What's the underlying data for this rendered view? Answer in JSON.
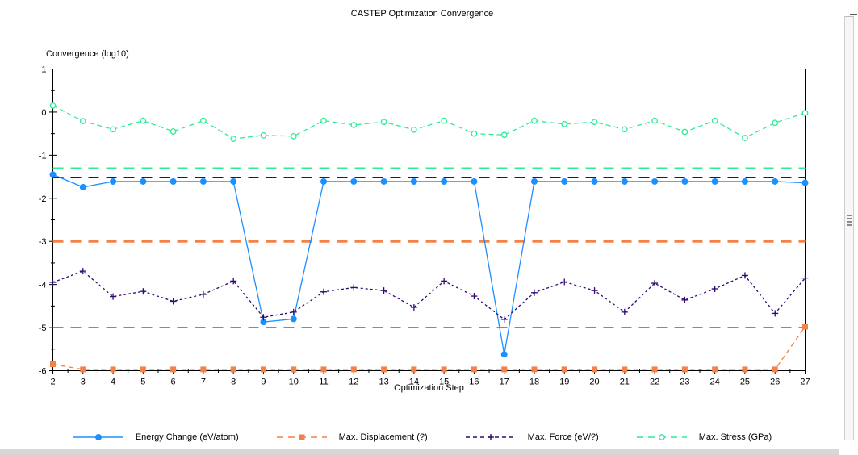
{
  "window": {
    "title": "CASTEP Optimization Convergence"
  },
  "chart_data": {
    "type": "line",
    "title": "CASTEP Optimization Convergence",
    "ylabel": "Convergence (log10)",
    "xlabel": "Optimization Step",
    "xlim": [
      2,
      27
    ],
    "ylim": [
      -6,
      1
    ],
    "y_major_ticks": [
      1,
      0,
      -1,
      -2,
      -3,
      -4,
      -5,
      -6
    ],
    "x_major_tick_step": 1,
    "minor_tick_step": 0.5,
    "grid": false,
    "legend_position": "bottom",
    "x": [
      2,
      3,
      4,
      5,
      6,
      7,
      8,
      9,
      10,
      11,
      12,
      13,
      14,
      15,
      16,
      17,
      18,
      19,
      20,
      21,
      22,
      23,
      24,
      25,
      26,
      27
    ],
    "series": [
      {
        "name": "Energy Change (eV/atom)",
        "color": "#1e8fff",
        "line_style": "solid",
        "marker": "circle-filled",
        "values": [
          -1.45,
          -1.74,
          -1.61,
          -1.61,
          -1.61,
          -1.61,
          -1.61,
          -4.87,
          -4.8,
          -1.61,
          -1.61,
          -1.61,
          -1.61,
          -1.61,
          -1.61,
          -5.62,
          -1.61,
          -1.61,
          -1.61,
          -1.61,
          -1.61,
          -1.61,
          -1.61,
          -1.61,
          -1.61,
          -1.64
        ]
      },
      {
        "name": "Max. Displacement (?)",
        "color": "#f48247",
        "line_style": "dashed",
        "marker": "square",
        "values": [
          -5.85,
          -5.97,
          -5.97,
          -5.97,
          -5.97,
          -5.97,
          -5.97,
          -5.97,
          -5.97,
          -5.97,
          -5.97,
          -5.97,
          -5.97,
          -5.97,
          -5.97,
          -5.97,
          -5.97,
          -5.97,
          -5.97,
          -5.97,
          -5.97,
          -5.97,
          -5.97,
          -5.97,
          -5.97,
          -4.98
        ]
      },
      {
        "name": "Max. Force (eV/?)",
        "color": "#300a70",
        "line_style": "dotted",
        "marker": "plus",
        "values": [
          -3.95,
          -3.69,
          -4.28,
          -4.16,
          -4.39,
          -4.23,
          -3.92,
          -4.76,
          -4.64,
          -4.17,
          -4.07,
          -4.14,
          -4.53,
          -3.92,
          -4.27,
          -4.81,
          -4.19,
          -3.94,
          -4.14,
          -4.64,
          -3.97,
          -4.36,
          -4.1,
          -3.79,
          -4.67,
          -3.85
        ]
      },
      {
        "name": "Max. Stress (GPa)",
        "color": "#2dec96",
        "line_style": "dashed",
        "marker": "circle-open",
        "values": [
          0.15,
          -0.21,
          -0.4,
          -0.2,
          -0.45,
          -0.2,
          -0.62,
          -0.54,
          -0.56,
          -0.2,
          -0.3,
          -0.23,
          -0.41,
          -0.2,
          -0.5,
          -0.53,
          -0.2,
          -0.28,
          -0.23,
          -0.4,
          -0.2,
          -0.46,
          -0.2,
          -0.6,
          -0.25,
          -0.02
        ]
      }
    ],
    "thresholds": [
      {
        "name": "Max. Stress threshold",
        "y": -1.3,
        "color": "#2dec96",
        "line_width": 1.8
      },
      {
        "name": "Max. Force threshold",
        "y": -1.52,
        "color": "#300a70",
        "line_width": 1.8
      },
      {
        "name": "Max. Displacement threshold",
        "y": -3.0,
        "color": "#f48247",
        "line_width": 3
      },
      {
        "name": "Energy Change threshold",
        "y": -5.0,
        "color": "#1e8fff",
        "line_width": 1.8
      }
    ]
  }
}
